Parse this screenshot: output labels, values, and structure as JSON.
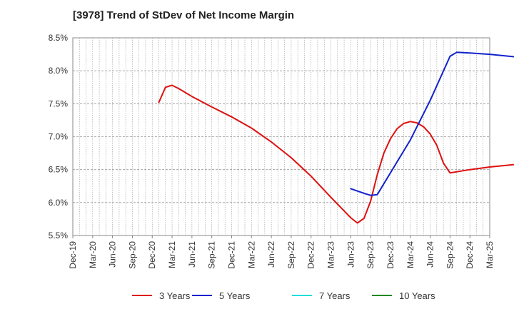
{
  "chart_data": {
    "type": "line",
    "title": "[3978]  Trend of StDev of Net Income Margin",
    "xlabel": "",
    "ylabel": "",
    "x_labels": [
      "Dec-19",
      "Mar-20",
      "Jun-20",
      "Sep-20",
      "Dec-20",
      "Mar-21",
      "Jun-21",
      "Sep-21",
      "Dec-21",
      "Mar-22",
      "Jun-22",
      "Sep-22",
      "Dec-22",
      "Mar-23",
      "Jun-23",
      "Sep-23",
      "Dec-23",
      "Mar-24",
      "Jun-24",
      "Sep-24",
      "Dec-24",
      "Mar-25"
    ],
    "y_ticks": [
      "5.5%",
      "6.0%",
      "6.5%",
      "7.0%",
      "7.5%",
      "8.0%",
      "8.5%"
    ],
    "ylim": [
      5.5,
      8.5
    ],
    "grid": true,
    "legend_position": "bottom",
    "series": [
      {
        "name": "3 Years",
        "color": "#dd1111",
        "points": [
          [
            "Jan-21",
            7.52
          ],
          [
            "Feb-21",
            7.75
          ],
          [
            "Mar-21",
            7.78
          ],
          [
            "Apr-21",
            7.73
          ],
          [
            "May-21",
            7.67
          ],
          [
            "Jun-21",
            7.61
          ],
          [
            "Sep-21",
            7.45
          ],
          [
            "Dec-21",
            7.3
          ],
          [
            "Mar-22",
            7.13
          ],
          [
            "Jun-22",
            6.92
          ],
          [
            "Sep-22",
            6.68
          ],
          [
            "Dec-22",
            6.4
          ],
          [
            "Mar-23",
            6.08
          ],
          [
            "Jun-23",
            5.77
          ],
          [
            "Jul-23",
            5.69
          ],
          [
            "Aug-23",
            5.76
          ],
          [
            "Sep-23",
            6.02
          ],
          [
            "Oct-23",
            6.42
          ],
          [
            "Nov-23",
            6.75
          ],
          [
            "Dec-23",
            6.97
          ],
          [
            "Jan-24",
            7.12
          ],
          [
            "Feb-24",
            7.2
          ],
          [
            "Mar-24",
            7.23
          ],
          [
            "Apr-24",
            7.21
          ],
          [
            "May-24",
            7.15
          ],
          [
            "Jun-24",
            7.04
          ],
          [
            "Jul-24",
            6.87
          ],
          [
            "Aug-24",
            6.6
          ],
          [
            "Sep-24",
            6.45
          ],
          [
            "Dec-24",
            6.5
          ],
          [
            "Mar-25",
            6.54
          ],
          [
            "Jun-25",
            6.57
          ],
          [
            "Sep-25",
            6.6
          ]
        ]
      },
      {
        "name": "5 Years",
        "color": "#1122cc",
        "points": [
          [
            "Jun-23",
            6.21
          ],
          [
            "Aug-23",
            6.14
          ],
          [
            "Sep-23",
            6.11
          ],
          [
            "Oct-23",
            6.12
          ],
          [
            "Mar-24",
            6.95
          ],
          [
            "Jun-24",
            7.55
          ],
          [
            "Sep-24",
            8.22
          ],
          [
            "Oct-24",
            8.28
          ],
          [
            "Dec-24",
            8.27
          ],
          [
            "Mar-25",
            8.25
          ],
          [
            "Sep-25",
            8.19
          ]
        ]
      },
      {
        "name": "7 Years",
        "color": "#22dddd",
        "points": []
      },
      {
        "name": "10 Years",
        "color": "#228822",
        "points": []
      }
    ]
  }
}
